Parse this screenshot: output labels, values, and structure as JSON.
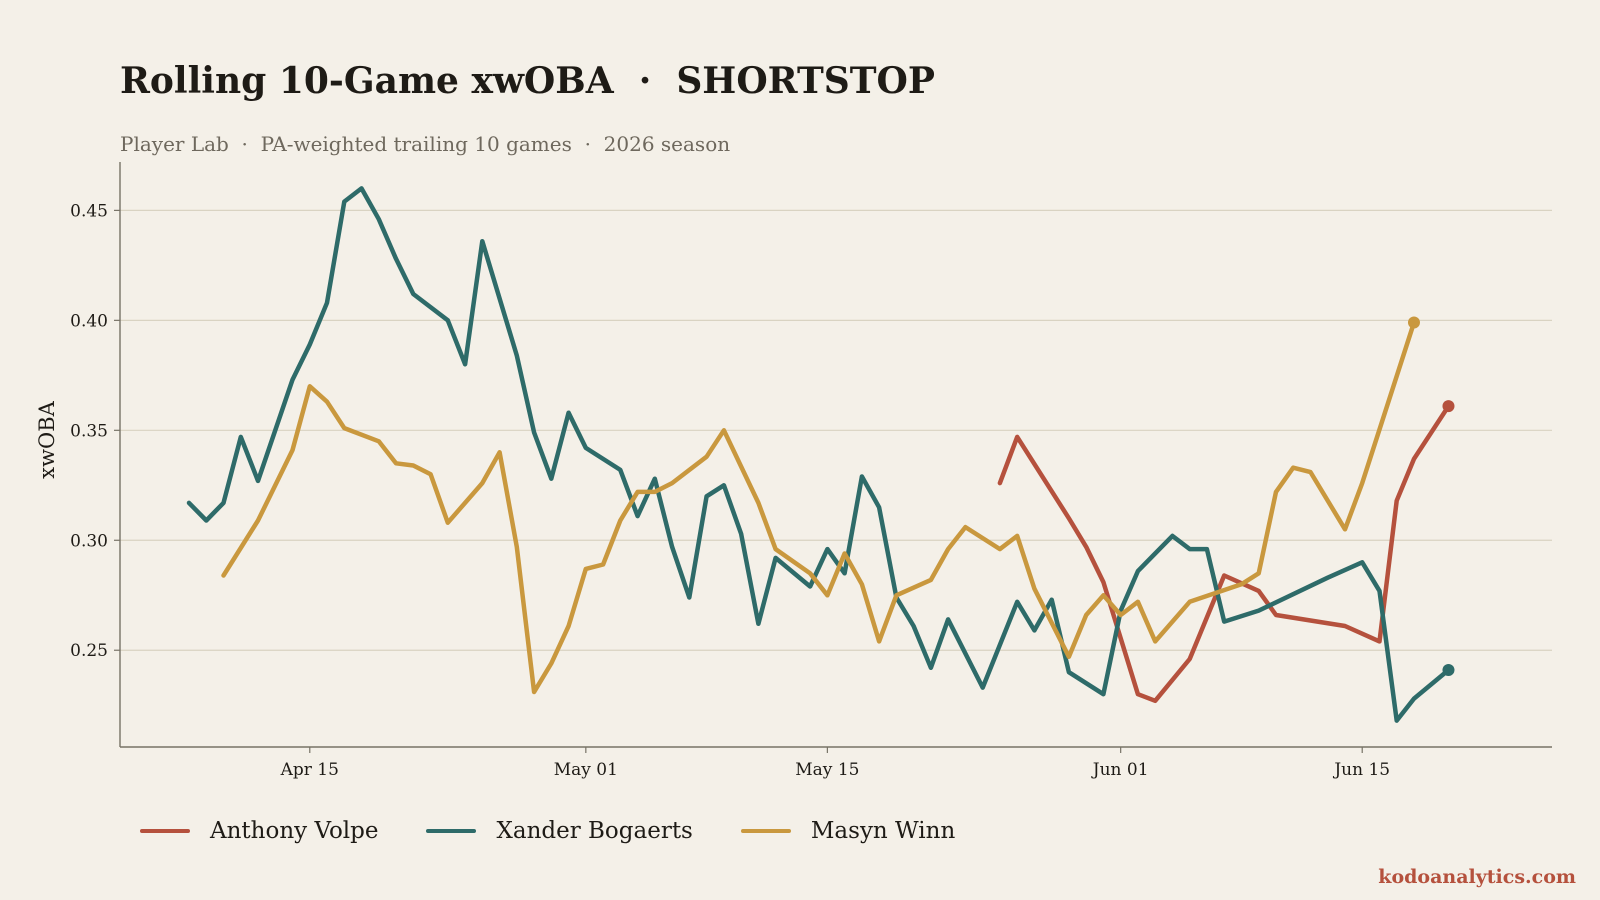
{
  "header": {
    "title": "Rolling 10-Game xwOBA  ·  SHORTSTOP",
    "subtitle": "Player Lab  ·  PA-weighted trailing 10 games  ·  2026 season"
  },
  "credit": {
    "text": "kodoanalytics.com",
    "color": "#b5513d"
  },
  "colors": {
    "background": "#f4f0e8",
    "grid": "#d9d3c2",
    "axis": "#777266",
    "text": "#1e1b16",
    "subtitle": "#6e685d"
  },
  "chart_data": {
    "type": "line",
    "title": "Rolling 10-Game xwOBA  ·  SHORTSTOP",
    "subtitle": "Player Lab  ·  PA-weighted trailing 10 games  ·  2026 season",
    "xlabel": "",
    "ylabel": "xwOBA",
    "x_type": "date",
    "xlim": [
      "2026-04-04",
      "2026-06-26"
    ],
    "ylim": [
      0.206,
      0.472
    ],
    "yticks": [
      0.25,
      0.3,
      0.35,
      0.4,
      0.45
    ],
    "ytick_labels": [
      "0.25",
      "0.30",
      "0.35",
      "0.40",
      "0.45"
    ],
    "xticks": [
      "2026-04-15",
      "2026-05-01",
      "2026-05-15",
      "2026-06-01",
      "2026-06-15"
    ],
    "xtick_labels": [
      "Apr 15",
      "May 01",
      "May 15",
      "Jun 01",
      "Jun 15"
    ],
    "grid": "horizontal",
    "legend_position": "bottom-left",
    "series": [
      {
        "name": "Anthony Volpe",
        "color": "#b5513d",
        "endpoint_marker": true,
        "points": [
          [
            "2026-05-25",
            0.326
          ],
          [
            "2026-05-26",
            0.347
          ],
          [
            "2026-05-29",
            0.31
          ],
          [
            "2026-05-30",
            0.297
          ],
          [
            "2026-05-31",
            0.281
          ],
          [
            "2026-06-02",
            0.23
          ],
          [
            "2026-06-03",
            0.227
          ],
          [
            "2026-06-05",
            0.246
          ],
          [
            "2026-06-07",
            0.284
          ],
          [
            "2026-06-09",
            0.277
          ],
          [
            "2026-06-10",
            0.266
          ],
          [
            "2026-06-14",
            0.261
          ],
          [
            "2026-06-16",
            0.254
          ],
          [
            "2026-06-17",
            0.318
          ],
          [
            "2026-06-18",
            0.337
          ],
          [
            "2026-06-20",
            0.361
          ]
        ]
      },
      {
        "name": "Xander Bogaerts",
        "color": "#2e6b69",
        "endpoint_marker": true,
        "points": [
          [
            "2026-04-08",
            0.317
          ],
          [
            "2026-04-09",
            0.309
          ],
          [
            "2026-04-10",
            0.317
          ],
          [
            "2026-04-11",
            0.347
          ],
          [
            "2026-04-12",
            0.327
          ],
          [
            "2026-04-14",
            0.373
          ],
          [
            "2026-04-15",
            0.389
          ],
          [
            "2026-04-16",
            0.408
          ],
          [
            "2026-04-17",
            0.454
          ],
          [
            "2026-04-18",
            0.46
          ],
          [
            "2026-04-19",
            0.446
          ],
          [
            "2026-04-20",
            0.428
          ],
          [
            "2026-04-21",
            0.412
          ],
          [
            "2026-04-23",
            0.4
          ],
          [
            "2026-04-24",
            0.38
          ],
          [
            "2026-04-25",
            0.436
          ],
          [
            "2026-04-27",
            0.384
          ],
          [
            "2026-04-28",
            0.349
          ],
          [
            "2026-04-29",
            0.328
          ],
          [
            "2026-04-30",
            0.358
          ],
          [
            "2026-05-01",
            0.342
          ],
          [
            "2026-05-03",
            0.332
          ],
          [
            "2026-05-04",
            0.311
          ],
          [
            "2026-05-05",
            0.328
          ],
          [
            "2026-05-06",
            0.297
          ],
          [
            "2026-05-07",
            0.274
          ],
          [
            "2026-05-08",
            0.32
          ],
          [
            "2026-05-09",
            0.325
          ],
          [
            "2026-05-10",
            0.303
          ],
          [
            "2026-05-11",
            0.262
          ],
          [
            "2026-05-12",
            0.292
          ],
          [
            "2026-05-14",
            0.279
          ],
          [
            "2026-05-15",
            0.296
          ],
          [
            "2026-05-16",
            0.285
          ],
          [
            "2026-05-17",
            0.329
          ],
          [
            "2026-05-18",
            0.315
          ],
          [
            "2026-05-19",
            0.274
          ],
          [
            "2026-05-20",
            0.261
          ],
          [
            "2026-05-21",
            0.242
          ],
          [
            "2026-05-22",
            0.264
          ],
          [
            "2026-05-24",
            0.233
          ],
          [
            "2026-05-26",
            0.272
          ],
          [
            "2026-05-27",
            0.259
          ],
          [
            "2026-05-28",
            0.273
          ],
          [
            "2026-05-29",
            0.24
          ],
          [
            "2026-05-31",
            0.23
          ],
          [
            "2026-06-01",
            0.268
          ],
          [
            "2026-06-02",
            0.286
          ],
          [
            "2026-06-04",
            0.302
          ],
          [
            "2026-06-05",
            0.296
          ],
          [
            "2026-06-06",
            0.296
          ],
          [
            "2026-06-07",
            0.263
          ],
          [
            "2026-06-09",
            0.268
          ],
          [
            "2026-06-13",
            0.283
          ],
          [
            "2026-06-15",
            0.29
          ],
          [
            "2026-06-16",
            0.277
          ],
          [
            "2026-06-17",
            0.218
          ],
          [
            "2026-06-18",
            0.228
          ],
          [
            "2026-06-20",
            0.241
          ]
        ]
      },
      {
        "name": "Masyn Winn",
        "color": "#c9983e",
        "endpoint_marker": true,
        "points": [
          [
            "2026-04-10",
            0.284
          ],
          [
            "2026-04-12",
            0.309
          ],
          [
            "2026-04-14",
            0.341
          ],
          [
            "2026-04-15",
            0.37
          ],
          [
            "2026-04-16",
            0.363
          ],
          [
            "2026-04-17",
            0.351
          ],
          [
            "2026-04-19",
            0.345
          ],
          [
            "2026-04-20",
            0.335
          ],
          [
            "2026-04-21",
            0.334
          ],
          [
            "2026-04-22",
            0.33
          ],
          [
            "2026-04-23",
            0.308
          ],
          [
            "2026-04-25",
            0.326
          ],
          [
            "2026-04-26",
            0.34
          ],
          [
            "2026-04-27",
            0.297
          ],
          [
            "2026-04-28",
            0.231
          ],
          [
            "2026-04-29",
            0.244
          ],
          [
            "2026-04-30",
            0.261
          ],
          [
            "2026-05-01",
            0.287
          ],
          [
            "2026-05-02",
            0.289
          ],
          [
            "2026-05-03",
            0.309
          ],
          [
            "2026-05-04",
            0.322
          ],
          [
            "2026-05-05",
            0.322
          ],
          [
            "2026-05-06",
            0.326
          ],
          [
            "2026-05-08",
            0.338
          ],
          [
            "2026-05-09",
            0.35
          ],
          [
            "2026-05-11",
            0.317
          ],
          [
            "2026-05-12",
            0.296
          ],
          [
            "2026-05-14",
            0.285
          ],
          [
            "2026-05-15",
            0.275
          ],
          [
            "2026-05-16",
            0.294
          ],
          [
            "2026-05-17",
            0.28
          ],
          [
            "2026-05-18",
            0.254
          ],
          [
            "2026-05-19",
            0.275
          ],
          [
            "2026-05-21",
            0.282
          ],
          [
            "2026-05-22",
            0.296
          ],
          [
            "2026-05-23",
            0.306
          ],
          [
            "2026-05-25",
            0.296
          ],
          [
            "2026-05-26",
            0.302
          ],
          [
            "2026-05-27",
            0.278
          ],
          [
            "2026-05-29",
            0.247
          ],
          [
            "2026-05-30",
            0.266
          ],
          [
            "2026-05-31",
            0.275
          ],
          [
            "2026-06-01",
            0.266
          ],
          [
            "2026-06-02",
            0.272
          ],
          [
            "2026-06-03",
            0.254
          ],
          [
            "2026-06-05",
            0.272
          ],
          [
            "2026-06-08",
            0.28
          ],
          [
            "2026-06-09",
            0.285
          ],
          [
            "2026-06-10",
            0.322
          ],
          [
            "2026-06-11",
            0.333
          ],
          [
            "2026-06-12",
            0.331
          ],
          [
            "2026-06-14",
            0.305
          ],
          [
            "2026-06-15",
            0.326
          ],
          [
            "2026-06-18",
            0.399
          ]
        ]
      }
    ]
  }
}
